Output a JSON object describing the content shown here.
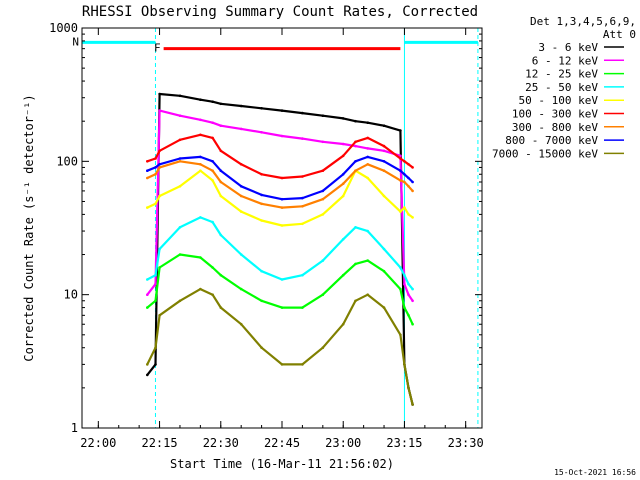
{
  "chart_data": {
    "type": "line",
    "title": "RHESSI Observing Summary Count Rates, Corrected",
    "xlabel": "Start Time (16-Mar-11 21:56:02)",
    "ylabel": "Corrected Count Rate (s⁻¹ detector⁻¹)",
    "x_axis": {
      "unit": "HH:MM",
      "ticks": [
        "22:00",
        "22:15",
        "22:30",
        "22:45",
        "23:00",
        "23:15",
        "23:30"
      ],
      "range": [
        "21:56",
        "23:34"
      ]
    },
    "y_axis": {
      "scale": "log",
      "ticks": [
        "1",
        "10",
        "100",
        "1000"
      ],
      "range": [
        1,
        1000
      ]
    },
    "legend": {
      "placement": "top-right",
      "header": [
        "Det 1,3,4,5,6,9,",
        "Att 0"
      ]
    },
    "flags": [
      {
        "label": "F",
        "color": "#ff0000",
        "start": "22:16",
        "end": "23:14",
        "level": 700
      },
      {
        "label": "N",
        "color": "#00ffff",
        "start": "21:56",
        "end": "22:14",
        "level": 780
      },
      {
        "label": "",
        "color": "#00ffff",
        "start": "23:15",
        "end": "23:33",
        "level": 780
      }
    ],
    "vlines": [
      {
        "time": "21:56",
        "color": "#00ffff",
        "style": "solid"
      },
      {
        "time": "22:14",
        "color": "#00ffff",
        "style": "dashed"
      },
      {
        "time": "23:15",
        "color": "#00ffff",
        "style": "solid"
      },
      {
        "time": "23:33",
        "color": "#00ffff",
        "style": "dashed"
      }
    ],
    "x": [
      "22:12",
      "22:14",
      "22:15",
      "22:20",
      "22:25",
      "22:28",
      "22:30",
      "22:35",
      "22:40",
      "22:45",
      "22:50",
      "22:55",
      "23:00",
      "23:03",
      "23:06",
      "23:10",
      "23:14",
      "23:15",
      "23:16",
      "23:17"
    ],
    "series": [
      {
        "name": "3 - 6 keV",
        "color": "#000000",
        "values": [
          2.5,
          3,
          320,
          310,
          290,
          280,
          270,
          260,
          250,
          240,
          230,
          220,
          210,
          200,
          195,
          185,
          170,
          3,
          2,
          1.5
        ]
      },
      {
        "name": "6 - 12 keV",
        "color": "#ff00ff",
        "values": [
          10,
          12,
          240,
          220,
          205,
          195,
          185,
          175,
          165,
          155,
          148,
          140,
          135,
          130,
          125,
          120,
          110,
          12,
          10,
          9
        ]
      },
      {
        "name": "12 - 25 keV",
        "color": "#00ff00",
        "values": [
          8,
          9,
          16,
          20,
          19,
          16,
          14,
          11,
          9,
          8,
          8,
          10,
          14,
          17,
          18,
          15,
          11,
          8,
          7,
          6
        ]
      },
      {
        "name": "25 - 50 keV",
        "color": "#00ffff",
        "values": [
          13,
          14,
          22,
          32,
          38,
          35,
          28,
          20,
          15,
          13,
          14,
          18,
          26,
          32,
          30,
          22,
          16,
          14,
          12,
          11
        ]
      },
      {
        "name": "50 - 100 keV",
        "color": "#ffff00",
        "values": [
          45,
          48,
          55,
          65,
          85,
          72,
          55,
          42,
          36,
          33,
          34,
          40,
          55,
          85,
          75,
          55,
          42,
          45,
          40,
          38
        ]
      },
      {
        "name": "100 - 300 keV",
        "color": "#ff0000",
        "values": [
          100,
          105,
          120,
          145,
          158,
          150,
          120,
          95,
          80,
          75,
          77,
          85,
          110,
          140,
          150,
          130,
          105,
          100,
          95,
          90
        ]
      },
      {
        "name": "300 - 800 keV",
        "color": "#ff8000",
        "values": [
          75,
          80,
          90,
          100,
          95,
          85,
          70,
          55,
          48,
          45,
          46,
          52,
          68,
          85,
          95,
          85,
          72,
          70,
          65,
          60
        ]
      },
      {
        "name": "800 - 7000 keV",
        "color": "#0000ff",
        "values": [
          85,
          90,
          95,
          105,
          108,
          100,
          85,
          65,
          56,
          52,
          53,
          60,
          80,
          100,
          108,
          100,
          85,
          80,
          75,
          70
        ]
      },
      {
        "name": "7000 - 15000 keV",
        "color": "#808000",
        "values": [
          3,
          4,
          7,
          9,
          11,
          10,
          8,
          6,
          4,
          3,
          3,
          4,
          6,
          9,
          10,
          8,
          5,
          3,
          2,
          1.5
        ]
      }
    ],
    "legend_order": [
      "3 - 6 keV",
      "6 - 12 keV",
      "12 - 25 keV",
      "25 - 50 keV",
      "50 - 100 keV",
      "100 - 300 keV",
      "300 - 800 keV",
      "800 - 7000 keV",
      "7000 - 15000 keV"
    ],
    "grid": false,
    "footer": "15-Oct-2021 16:56"
  }
}
